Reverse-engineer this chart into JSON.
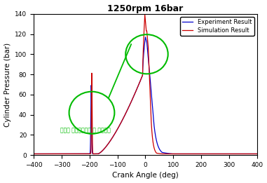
{
  "title": "1250rpm 16bar",
  "xlabel": "Crank Angle (deg)",
  "ylabel": "Cylinder Pressure (bar)",
  "xlim": [
    -400,
    400
  ],
  "ylim": [
    0,
    140
  ],
  "xticks": [
    -400,
    -300,
    -200,
    -100,
    0,
    100,
    200,
    300,
    400
  ],
  "yticks": [
    0,
    20,
    40,
    60,
    80,
    100,
    120,
    140
  ],
  "experiment_color": "#0000CD",
  "simulation_color": "#CC0000",
  "circle_color": "#00BB00",
  "annotation_text": "동일한 최대연소압력 및 발생시점",
  "annotation_color": "#00BB00",
  "legend_labels": [
    "Experiment Result",
    "Simulation Result"
  ],
  "background_color": "#ffffff"
}
